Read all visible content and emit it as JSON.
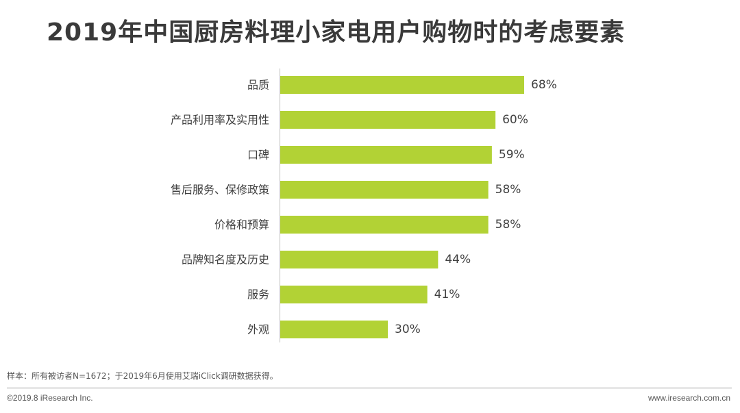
{
  "title": "2019年中国厨房料理小家电用户购物时的考虑要素",
  "chart_data": {
    "type": "bar",
    "orientation": "horizontal",
    "categories": [
      "品质",
      "产品利用率及实用性",
      "口碑",
      "售后服务、保修政策",
      "价格和预算",
      "品牌知名度及历史",
      "服务",
      "外观"
    ],
    "values": [
      68,
      60,
      59,
      58,
      58,
      44,
      41,
      30
    ],
    "value_labels": [
      "68%",
      "60%",
      "59%",
      "58%",
      "58%",
      "44%",
      "41%",
      "30%"
    ],
    "unit": "%",
    "xlim": [
      0,
      100
    ],
    "bar_color": "#b2d235",
    "grid": false,
    "title": "2019年中国厨房料理小家电用户购物时的考虑要素"
  },
  "footer": {
    "note": "样本：所有被访者N=1672；于2019年6月使用艾瑞iClick调研数据获得。",
    "copyright": "©2019.8 iResearch Inc.",
    "website": "www.iresearch.com.cn"
  }
}
